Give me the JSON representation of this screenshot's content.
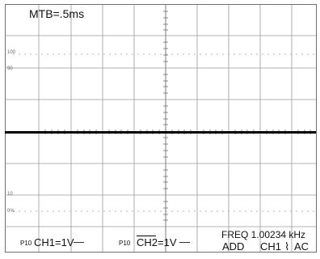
{
  "scope": {
    "timebase": "MTB=.5ms",
    "percent_marks": {
      "top_100": "100",
      "top_90": "90",
      "bottom_10": "10",
      "bottom_0": "0%"
    },
    "channel1": {
      "probe": "P10",
      "label": "CH1=1V",
      "coupling_symbol": "—"
    },
    "channel2": {
      "probe": "P10",
      "label": "CH2=1V",
      "coupling_symbol": "—"
    },
    "frequency": "FREQ 1.00234 kHz",
    "mode": "ADD",
    "trigger_source": "CH1",
    "trigger_slope_icon": "⌇",
    "trigger_coupling": "AC"
  },
  "colors": {
    "grid": "#8a8a8a",
    "trace": "#000000",
    "text": "#111111"
  }
}
